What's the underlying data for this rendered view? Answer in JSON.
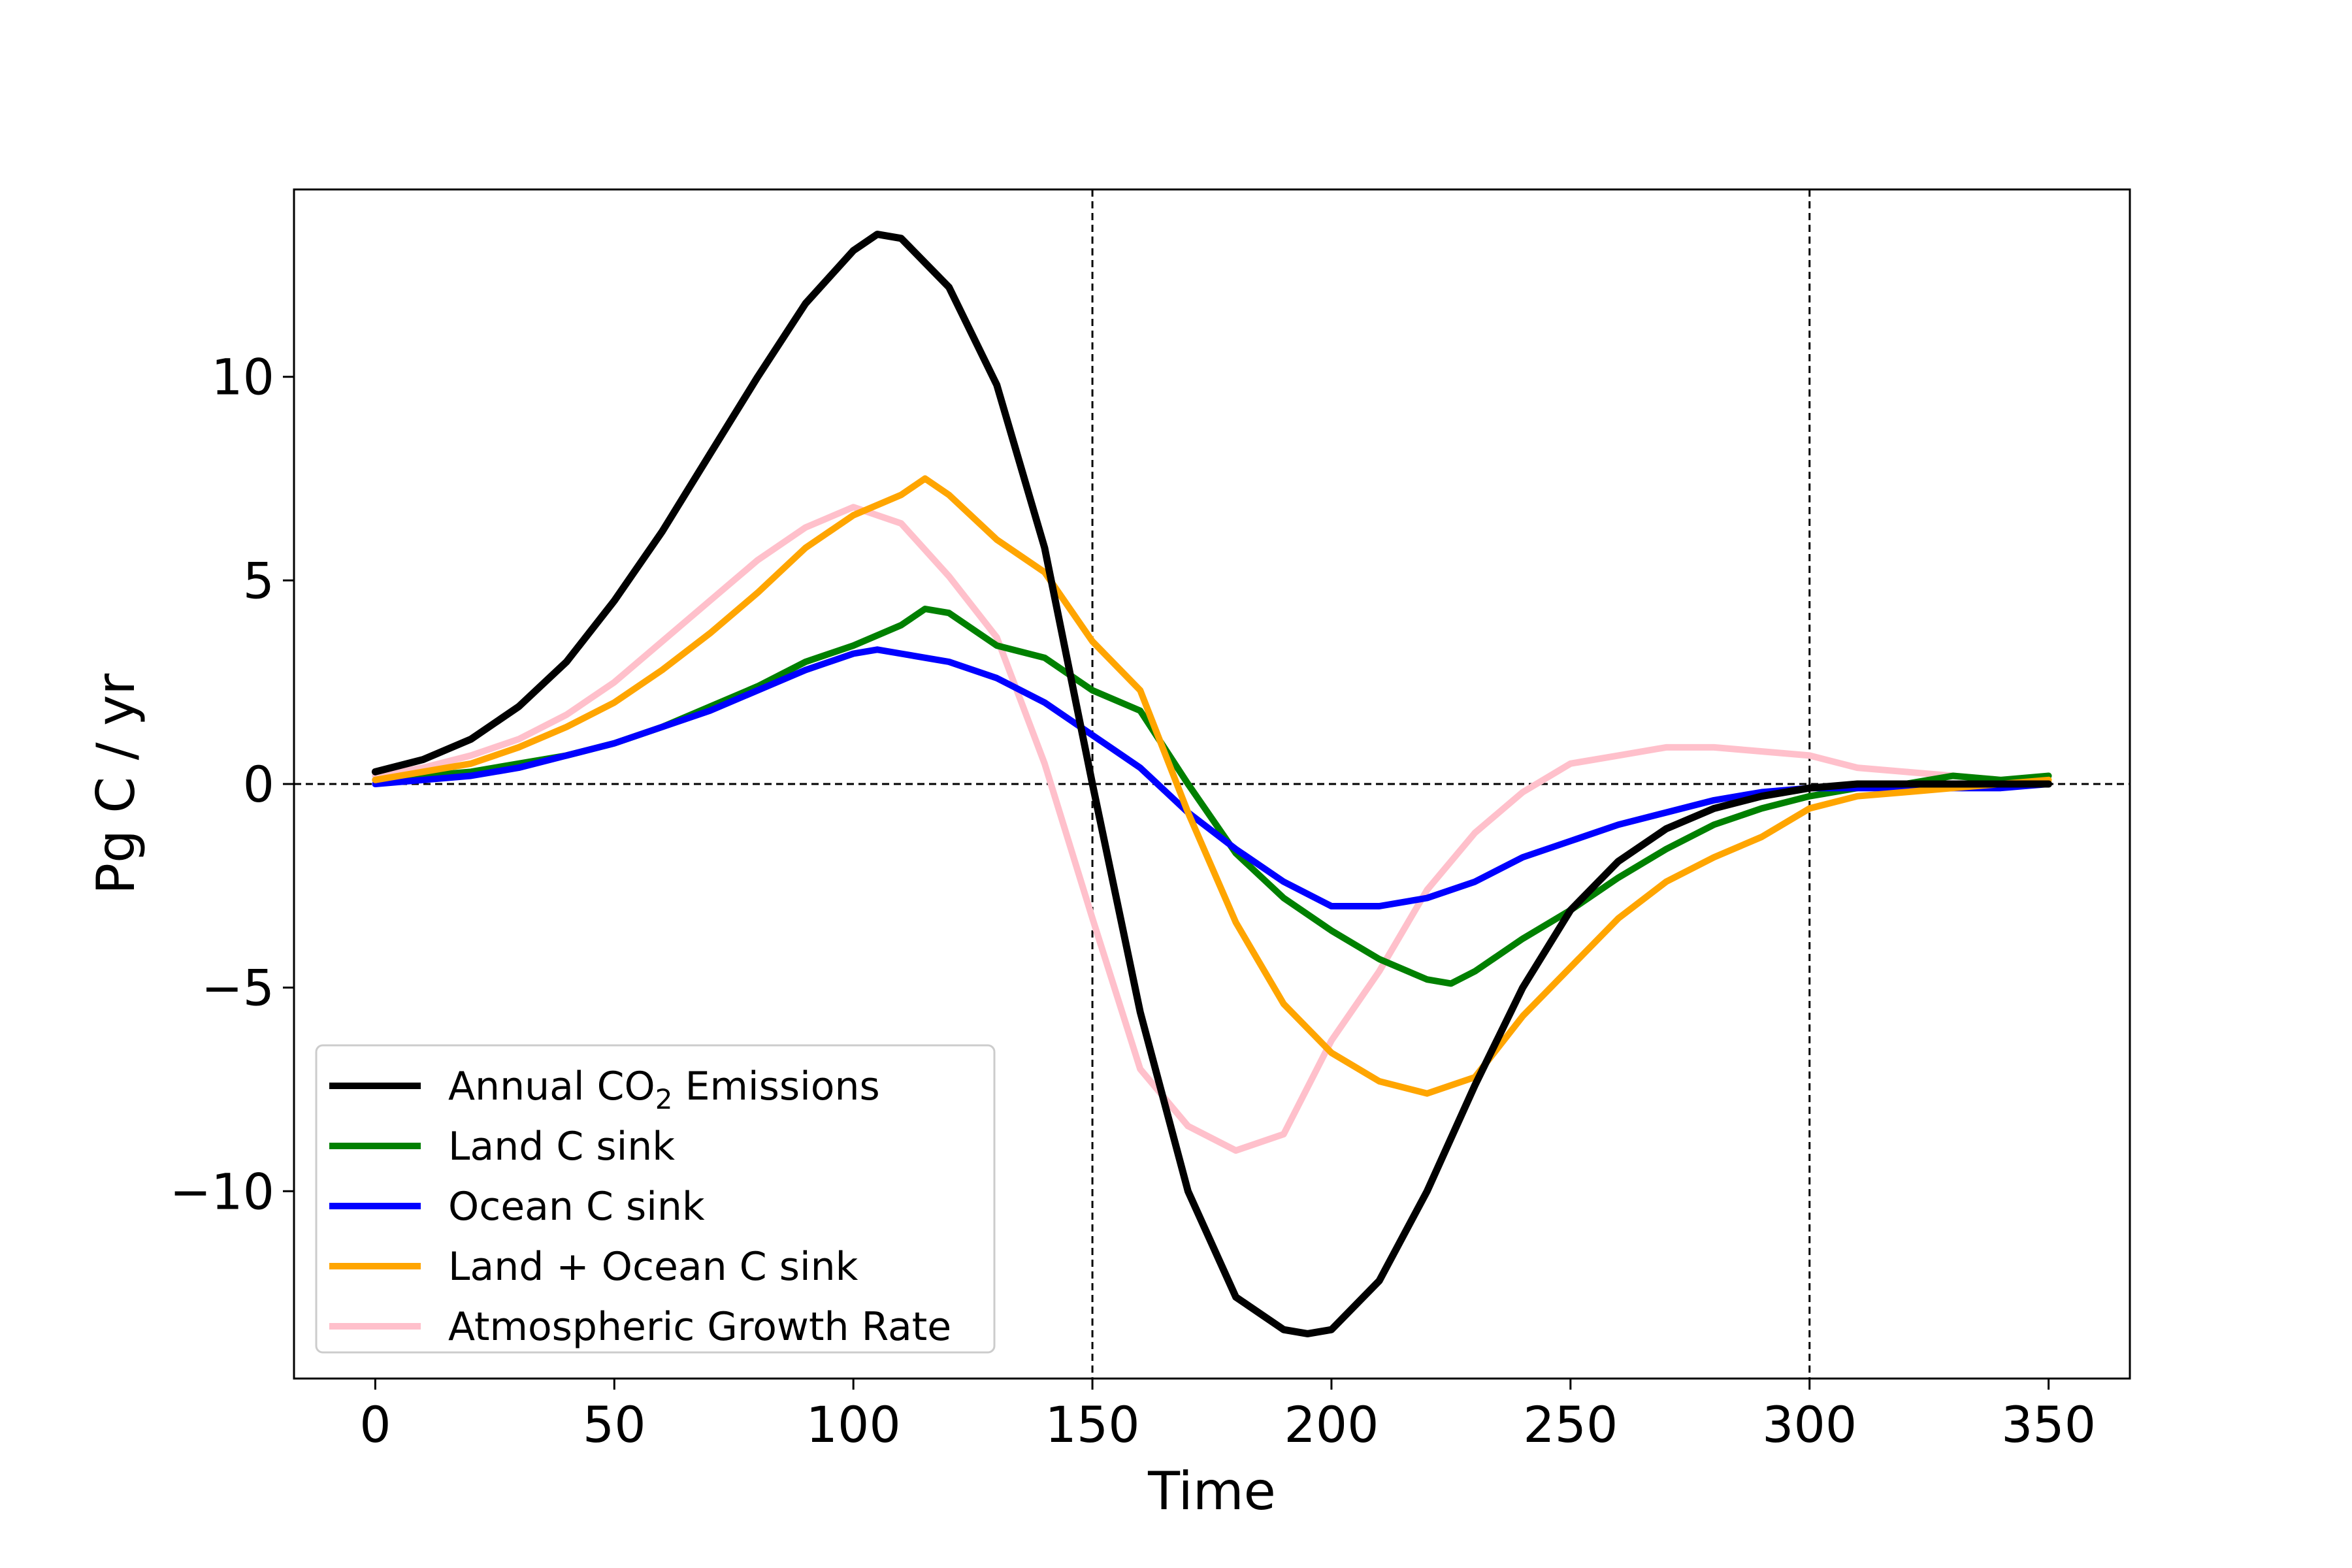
{
  "chart_data": {
    "type": "line",
    "xlabel": "Time",
    "ylabel": "Pg C / yr",
    "xlim": [
      -17,
      367
    ],
    "ylim": [
      -14.6,
      14.6
    ],
    "xticks": [
      0,
      50,
      100,
      150,
      200,
      250,
      300,
      350
    ],
    "yticks": [
      -10,
      -5,
      0,
      5,
      10
    ],
    "ytick_labels": [
      "−10",
      "−5",
      "0",
      "5",
      "10"
    ],
    "grid": false,
    "legend_position": "lower-left",
    "reference_lines": {
      "horizontal_y": [
        0
      ],
      "vertical_x": [
        150,
        300
      ],
      "style": "dashed"
    },
    "series": [
      {
        "name": "Annual CO2 Emissions",
        "legend_parts": [
          "Annual CO",
          "2",
          " Emissions"
        ],
        "color": "#000000",
        "x": [
          0,
          10,
          20,
          30,
          40,
          50,
          60,
          70,
          80,
          90,
          100,
          105,
          110,
          120,
          130,
          140,
          150,
          160,
          170,
          180,
          190,
          195,
          200,
          210,
          220,
          230,
          240,
          250,
          260,
          270,
          280,
          290,
          300,
          310,
          320,
          330,
          340,
          350
        ],
        "y": [
          0.3,
          0.6,
          1.1,
          1.9,
          3.0,
          4.5,
          6.2,
          8.1,
          10.0,
          11.8,
          13.1,
          13.5,
          13.4,
          12.2,
          9.8,
          5.8,
          0.0,
          -5.6,
          -10.0,
          -12.6,
          -13.4,
          -13.5,
          -13.4,
          -12.2,
          -10.0,
          -7.4,
          -5.0,
          -3.1,
          -1.9,
          -1.1,
          -0.6,
          -0.3,
          -0.1,
          0.0,
          0.0,
          0.0,
          0.0,
          0.0
        ]
      },
      {
        "name": "Land C sink",
        "color": "#008000",
        "x": [
          0,
          10,
          20,
          30,
          40,
          50,
          60,
          70,
          80,
          90,
          100,
          110,
          115,
          120,
          130,
          140,
          150,
          160,
          170,
          180,
          190,
          200,
          210,
          220,
          225,
          230,
          240,
          250,
          260,
          270,
          280,
          290,
          300,
          310,
          320,
          330,
          340,
          350
        ],
        "y": [
          0.1,
          0.2,
          0.3,
          0.5,
          0.7,
          1.0,
          1.4,
          1.9,
          2.4,
          3.0,
          3.4,
          3.9,
          4.3,
          4.2,
          3.4,
          3.1,
          2.3,
          1.8,
          0.0,
          -1.7,
          -2.8,
          -3.6,
          -4.3,
          -4.8,
          -4.9,
          -4.6,
          -3.8,
          -3.1,
          -2.3,
          -1.6,
          -1.0,
          -0.6,
          -0.3,
          -0.1,
          0.0,
          0.2,
          0.1,
          0.2
        ]
      },
      {
        "name": "Ocean C sink",
        "color": "#0000ff",
        "x": [
          0,
          10,
          20,
          30,
          40,
          50,
          60,
          70,
          80,
          90,
          100,
          105,
          110,
          120,
          130,
          140,
          150,
          160,
          170,
          180,
          190,
          200,
          210,
          220,
          230,
          240,
          250,
          260,
          270,
          280,
          290,
          300,
          310,
          320,
          330,
          340,
          350
        ],
        "y": [
          0.0,
          0.1,
          0.2,
          0.4,
          0.7,
          1.0,
          1.4,
          1.8,
          2.3,
          2.8,
          3.2,
          3.3,
          3.2,
          3.0,
          2.6,
          2.0,
          1.2,
          0.4,
          -0.7,
          -1.6,
          -2.4,
          -3.0,
          -3.0,
          -2.8,
          -2.4,
          -1.8,
          -1.4,
          -1.0,
          -0.7,
          -0.4,
          -0.2,
          -0.1,
          -0.1,
          -0.1,
          -0.1,
          -0.1,
          0.0
        ]
      },
      {
        "name": "Land + Ocean C sink",
        "color": "#ffa500",
        "x": [
          0,
          10,
          20,
          30,
          40,
          50,
          60,
          70,
          80,
          90,
          100,
          110,
          115,
          120,
          130,
          140,
          150,
          160,
          170,
          180,
          190,
          200,
          210,
          220,
          230,
          240,
          250,
          260,
          270,
          280,
          290,
          300,
          310,
          320,
          330,
          340,
          350
        ],
        "y": [
          0.1,
          0.3,
          0.5,
          0.9,
          1.4,
          2.0,
          2.8,
          3.7,
          4.7,
          5.8,
          6.6,
          7.1,
          7.5,
          7.1,
          6.0,
          5.2,
          3.5,
          2.3,
          -0.7,
          -3.4,
          -5.4,
          -6.6,
          -7.3,
          -7.6,
          -7.2,
          -5.7,
          -4.5,
          -3.3,
          -2.4,
          -1.8,
          -1.3,
          -0.6,
          -0.3,
          -0.2,
          -0.1,
          0.0,
          0.1
        ]
      },
      {
        "name": "Atmospheric Growth Rate",
        "color": "#ffc0cb",
        "x": [
          0,
          10,
          20,
          30,
          40,
          50,
          60,
          70,
          80,
          90,
          100,
          110,
          120,
          130,
          140,
          150,
          160,
          170,
          180,
          190,
          200,
          210,
          220,
          230,
          240,
          250,
          260,
          270,
          280,
          290,
          300,
          310,
          320,
          330,
          340,
          350
        ],
        "y": [
          0.2,
          0.4,
          0.7,
          1.1,
          1.7,
          2.5,
          3.5,
          4.5,
          5.5,
          6.3,
          6.8,
          6.4,
          5.1,
          3.6,
          0.5,
          -3.3,
          -7.0,
          -8.4,
          -9.0,
          -8.6,
          -6.3,
          -4.6,
          -2.6,
          -1.2,
          -0.2,
          0.5,
          0.7,
          0.9,
          0.9,
          0.8,
          0.7,
          0.4,
          0.3,
          0.2,
          0.1,
          0.0
        ]
      }
    ]
  }
}
